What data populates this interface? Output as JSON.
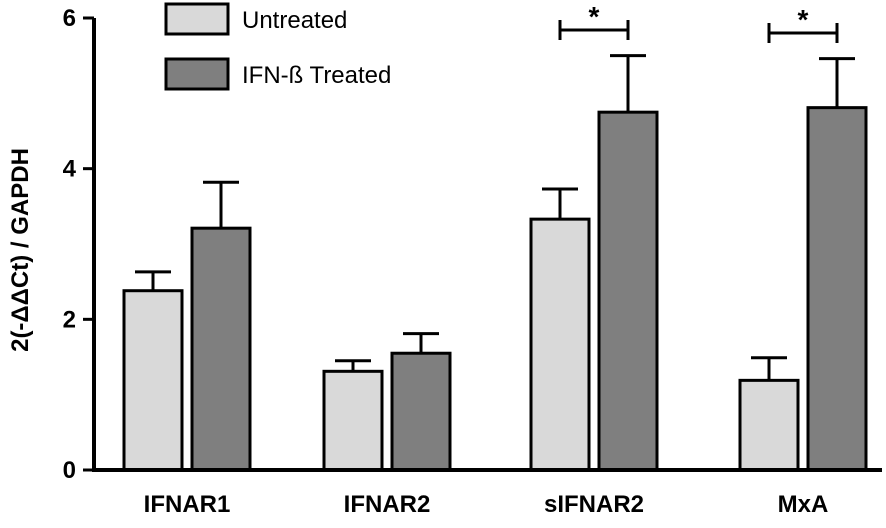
{
  "chart_data": {
    "type": "bar",
    "title": "",
    "xlabel": "",
    "ylabel": "2(-ΔΔCt) / GAPDH",
    "ylim": [
      0,
      6
    ],
    "yticks": [
      0,
      2,
      4,
      6
    ],
    "grid": false,
    "legend_position": "top-left",
    "categories": [
      "IFNAR1",
      "IFNAR2",
      "sIFNAR2",
      "MxA"
    ],
    "series": [
      {
        "name": "Untreated",
        "color": "#d9d9d9",
        "values": [
          2.38,
          1.31,
          3.33,
          1.19
        ],
        "errors": [
          0.25,
          0.14,
          0.4,
          0.3
        ]
      },
      {
        "name": "IFN-ß Treated",
        "color": "#7f7f7f",
        "values": [
          3.21,
          1.55,
          4.75,
          4.81
        ],
        "errors": [
          0.61,
          0.26,
          0.75,
          0.65
        ]
      }
    ],
    "significance": [
      {
        "category": "sIFNAR2",
        "label": "*"
      },
      {
        "category": "MxA",
        "label": "*"
      }
    ]
  }
}
